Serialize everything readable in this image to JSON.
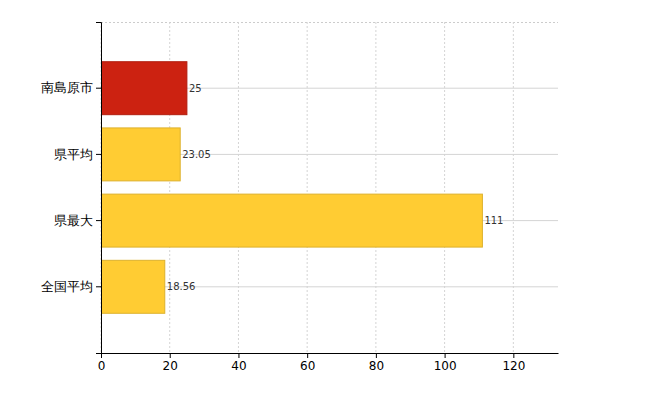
{
  "chart_data": {
    "type": "bar",
    "orientation": "horizontal",
    "categories": [
      "南島原市",
      "県平均",
      "県最大",
      "全国平均"
    ],
    "values": [
      25,
      23.05,
      111,
      18.56
    ],
    "colors": [
      "#cc2211",
      "#ffcc33",
      "#ffcc33",
      "#ffcc33"
    ],
    "xlim": [
      0,
      133
    ],
    "xticks": [
      0,
      20,
      40,
      60,
      80,
      100,
      120
    ],
    "grid": true,
    "data_labels": true
  }
}
